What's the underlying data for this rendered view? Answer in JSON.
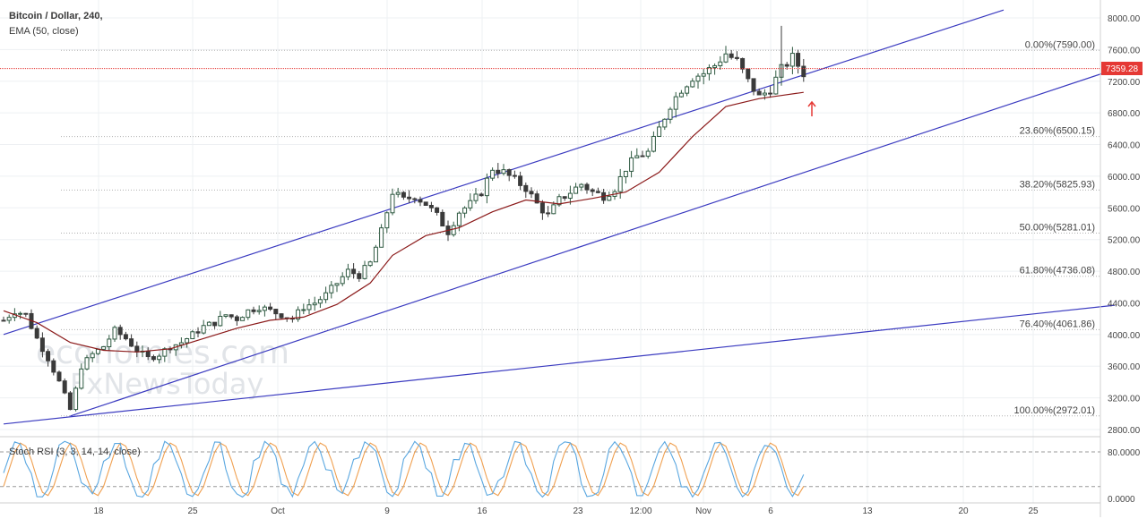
{
  "header": {
    "symbol_title": "Bitcoin / Dollar, 240,",
    "indicator": "EMA (50, close)"
  },
  "watermark": {
    "line1": "economies.com",
    "line2": "FxNewsToday"
  },
  "colors": {
    "up": "#2f5a42",
    "down": "#3a3a3a",
    "ema": "#8b1a1a",
    "channel": "#3b3bc0",
    "price_line": "#e53935",
    "stoch_k": "#5aa7e0",
    "stoch_d": "#f0a050",
    "arrow": "#e53935"
  },
  "chart_data": [
    {
      "type": "candlestick",
      "title": "Bitcoin / Dollar, 240,",
      "ylim": [
        2650,
        8150
      ],
      "y_ticks": [
        8000,
        7600,
        7200,
        6800,
        6400,
        6000,
        5600,
        5200,
        4800,
        4400,
        4000,
        3600,
        3200,
        2800
      ],
      "x_tick_labels": [
        "18",
        "25",
        "Oct",
        "9",
        "16",
        "23",
        "12:00",
        "Nov",
        "6",
        "13",
        "20",
        "25"
      ],
      "current_price": "7359.28",
      "overlays": [
        "EMA (50, close)"
      ],
      "fibonacci_levels": [
        {
          "label": "0.00%(7590.00)",
          "value": 7590
        },
        {
          "label": "23.60%(6500.15)",
          "value": 6500.15
        },
        {
          "label": "38.20%(5825.93)",
          "value": 5825.93
        },
        {
          "label": "50.00%(5281.01)",
          "value": 5281.01
        },
        {
          "label": "61.80%(4736.08)",
          "value": 4736.08
        },
        {
          "label": "76.40%(4061.86)",
          "value": 4061.86
        },
        {
          "label": "100.00%(2972.01)",
          "value": 2972.01
        }
      ],
      "price_path": [
        [
          0,
          4180
        ],
        [
          2,
          4300
        ],
        [
          4,
          4250
        ],
        [
          6,
          3950
        ],
        [
          8,
          3700
        ],
        [
          10,
          3400
        ],
        [
          12,
          3050
        ],
        [
          13,
          3300
        ],
        [
          14,
          3600
        ],
        [
          16,
          3750
        ],
        [
          18,
          3850
        ],
        [
          20,
          4050
        ],
        [
          22,
          3950
        ],
        [
          24,
          3800
        ],
        [
          26,
          3700
        ],
        [
          28,
          3750
        ],
        [
          30,
          3850
        ],
        [
          32,
          3900
        ],
        [
          34,
          4000
        ],
        [
          36,
          4100
        ],
        [
          38,
          4150
        ],
        [
          40,
          4250
        ],
        [
          42,
          4200
        ],
        [
          44,
          4300
        ],
        [
          46,
          4350
        ],
        [
          48,
          4300
        ],
        [
          50,
          4250
        ],
        [
          52,
          4200
        ],
        [
          54,
          4350
        ],
        [
          56,
          4400
        ],
        [
          58,
          4500
        ],
        [
          60,
          4650
        ],
        [
          62,
          4800
        ],
        [
          64,
          4750
        ],
        [
          66,
          4900
        ],
        [
          68,
          5300
        ],
        [
          70,
          5800
        ],
        [
          72,
          5700
        ],
        [
          74,
          5750
        ],
        [
          76,
          5650
        ],
        [
          78,
          5500
        ],
        [
          80,
          5300
        ],
        [
          82,
          5550
        ],
        [
          84,
          5650
        ],
        [
          86,
          5800
        ],
        [
          88,
          6100
        ],
        [
          90,
          6050
        ],
        [
          92,
          5950
        ],
        [
          94,
          5850
        ],
        [
          96,
          5650
        ],
        [
          98,
          5500
        ],
        [
          100,
          5700
        ],
        [
          102,
          5800
        ],
        [
          104,
          5900
        ],
        [
          106,
          5800
        ],
        [
          108,
          5750
        ],
        [
          110,
          5850
        ],
        [
          112,
          6100
        ],
        [
          114,
          6250
        ],
        [
          116,
          6300
        ],
        [
          118,
          6600
        ],
        [
          120,
          6900
        ],
        [
          122,
          7100
        ],
        [
          124,
          7250
        ],
        [
          126,
          7300
        ],
        [
          128,
          7400
        ],
        [
          130,
          7550
        ],
        [
          132,
          7450
        ],
        [
          134,
          7200
        ],
        [
          136,
          7000
        ],
        [
          138,
          7100
        ],
        [
          140,
          7350
        ],
        [
          142,
          7500
        ],
        [
          144,
          7300
        ]
      ],
      "ema_path": [
        [
          0,
          4300
        ],
        [
          6,
          4150
        ],
        [
          12,
          3900
        ],
        [
          18,
          3800
        ],
        [
          24,
          3780
        ],
        [
          30,
          3820
        ],
        [
          36,
          3950
        ],
        [
          42,
          4080
        ],
        [
          48,
          4180
        ],
        [
          54,
          4220
        ],
        [
          60,
          4380
        ],
        [
          66,
          4650
        ],
        [
          70,
          5000
        ],
        [
          76,
          5250
        ],
        [
          82,
          5350
        ],
        [
          88,
          5550
        ],
        [
          94,
          5700
        ],
        [
          100,
          5650
        ],
        [
          106,
          5720
        ],
        [
          112,
          5800
        ],
        [
          118,
          6050
        ],
        [
          124,
          6500
        ],
        [
          130,
          6880
        ],
        [
          136,
          6980
        ],
        [
          140,
          7020
        ],
        [
          144,
          7060
        ]
      ],
      "channel_lines": [
        {
          "name": "upper",
          "from": [
            0,
            4000
          ],
          "to": [
            180,
            8100
          ]
        },
        {
          "name": "lower",
          "from": [
            12,
            2970
          ],
          "to": [
            200,
            7350
          ]
        },
        {
          "name": "base",
          "from": [
            0,
            2870
          ],
          "to": [
            200,
            4370
          ]
        }
      ]
    },
    {
      "type": "line",
      "title": "Stoch RSI (3, 3, 14, 14, close)",
      "ylim": [
        -5,
        100
      ],
      "y_ticks": [
        {
          "label": "80.0000",
          "value": 80
        },
        {
          "label": "0.0000",
          "value": 0
        }
      ],
      "reference_lines": [
        80,
        20
      ],
      "series": [
        {
          "name": "K",
          "cycle_length": 9
        },
        {
          "name": "D",
          "cycle_length": 9
        }
      ]
    }
  ]
}
